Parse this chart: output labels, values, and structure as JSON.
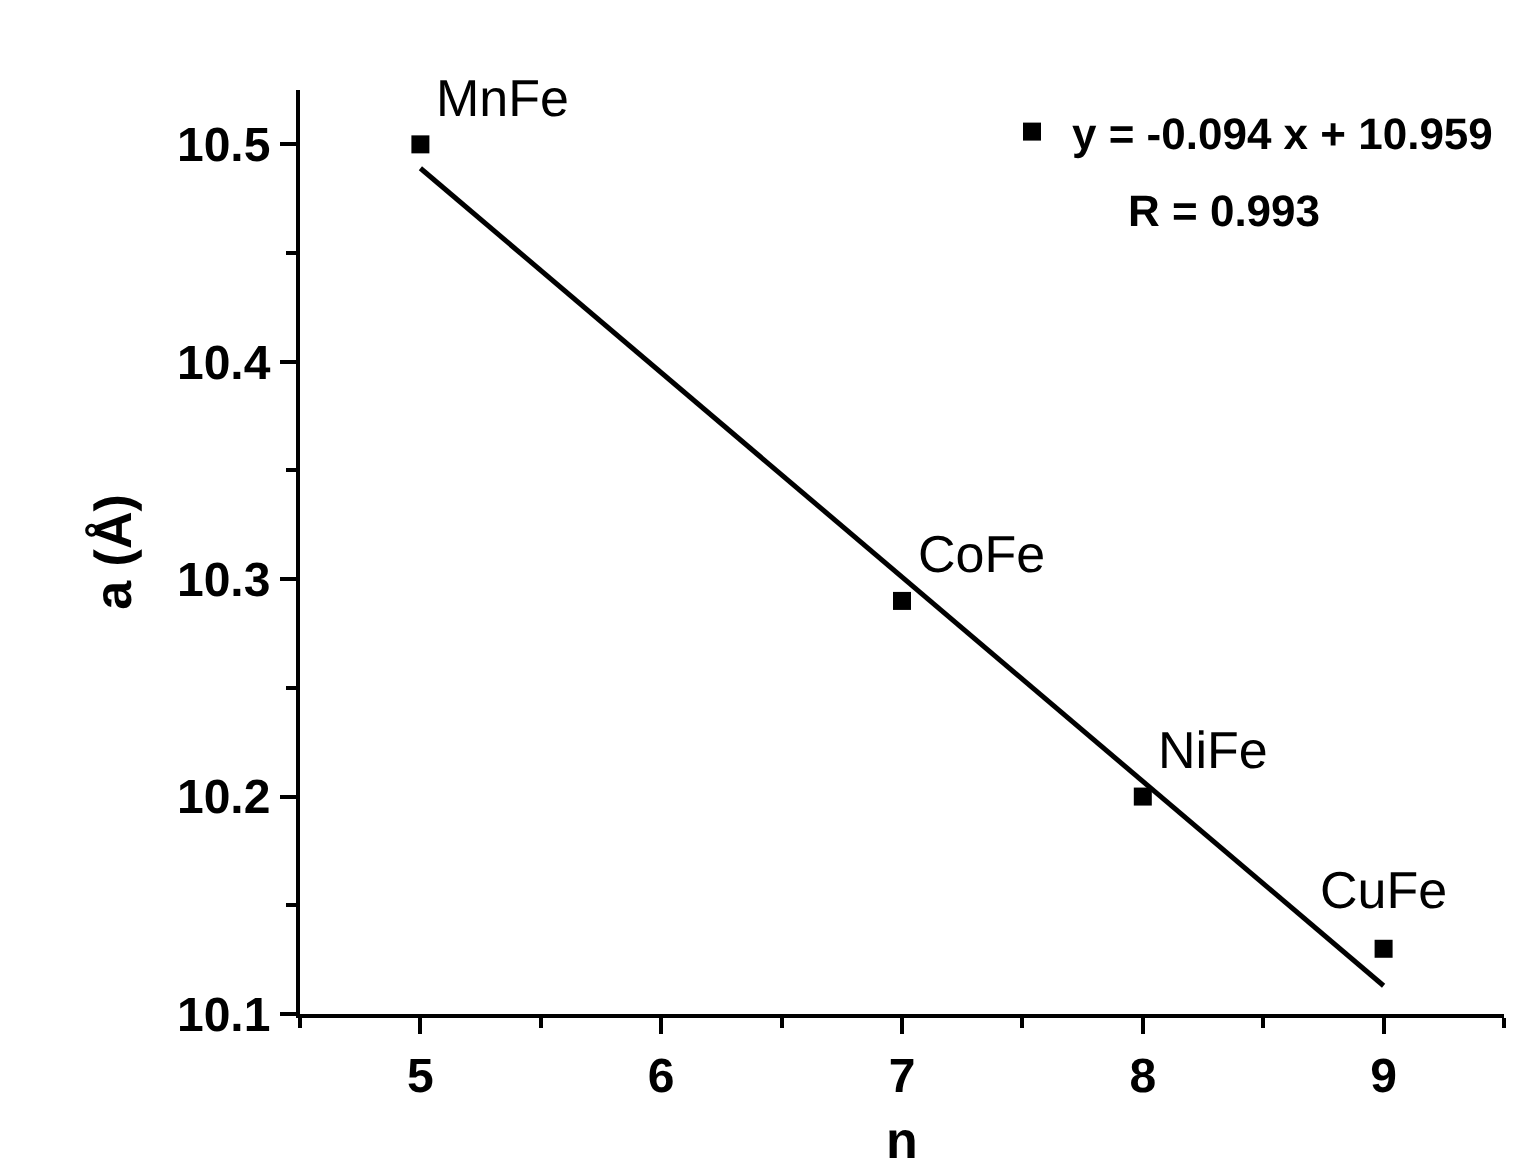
{
  "chart_data": {
    "type": "scatter",
    "xlabel": "n",
    "ylabel": "a (Å)",
    "xlim": [
      4.5,
      9.5
    ],
    "xticks": [
      5,
      6,
      7,
      8,
      9
    ],
    "ylim": [
      10.1,
      10.525
    ],
    "yticks": [
      10.1,
      10.2,
      10.3,
      10.4,
      10.5
    ],
    "legend": "top right",
    "series": [
      {
        "name": "y = -0.094 x + 10.959",
        "color": "#000000",
        "marker": "square",
        "x": [
          5,
          7,
          8,
          9
        ],
        "values": [
          10.5,
          10.29,
          10.2,
          10.13
        ]
      },
      {
        "type": "line",
        "color": "#000000",
        "x": [
          5,
          9
        ],
        "values": [
          10.489,
          10.113
        ],
        "line_style": "solid",
        "marker": "none"
      }
    ],
    "annotations": [
      "R = 0.993",
      {
        "text": "MnFe",
        "x": 5,
        "y": 10.5
      },
      {
        "text": "CoFe",
        "x": 7,
        "y": 10.29
      },
      {
        "text": "NiFe",
        "x": 8,
        "y": 10.2
      },
      {
        "text": "CuFe",
        "x": 9,
        "y": 10.13
      }
    ]
  }
}
